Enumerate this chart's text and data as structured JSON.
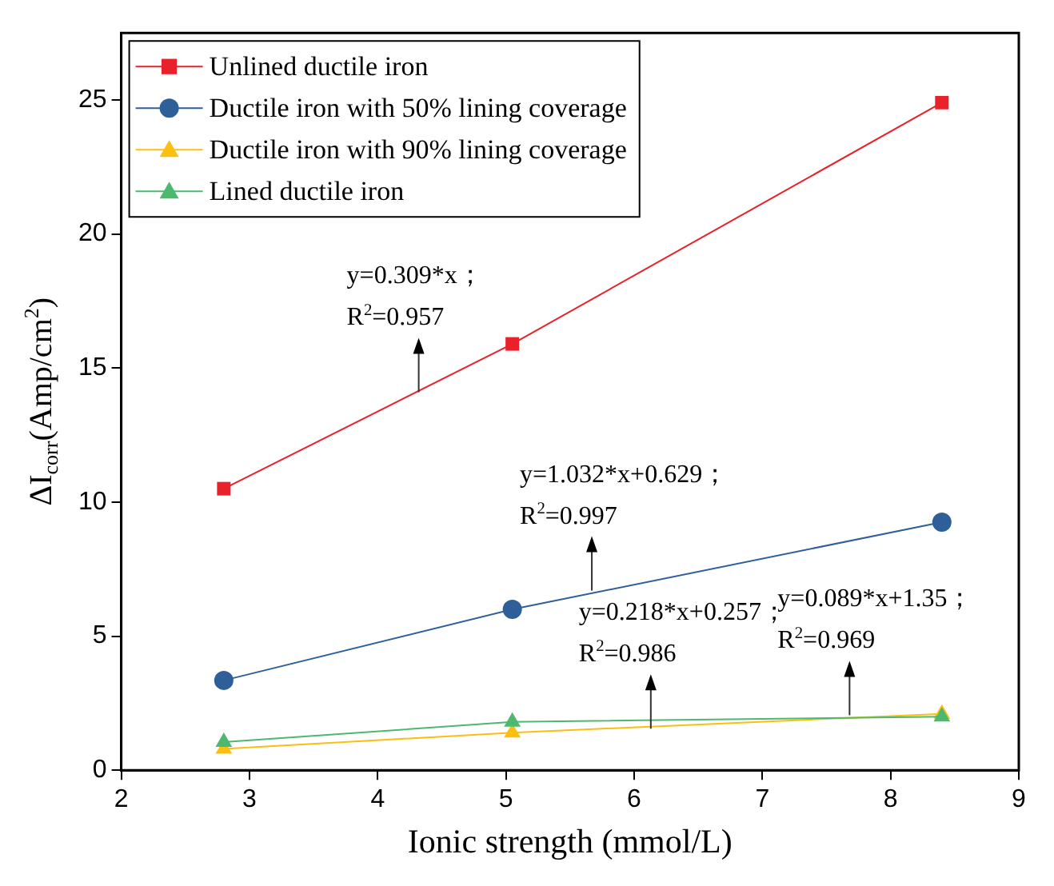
{
  "chart_data": {
    "type": "line",
    "xlabel": "Ionic strength (mmol/L)",
    "ylabel": "ΔI$_{corr}$(Amp/cm$^{2}$)",
    "x": [
      2.8,
      5.05,
      8.4
    ],
    "series": [
      {
        "name": "Unlined ductile iron",
        "color": "#e8212b",
        "values": [
          10.5,
          15.9,
          24.9
        ],
        "marker": "square"
      },
      {
        "name": "Ductile iron with 50% lining coverage",
        "color": "#2f5f98",
        "values": [
          3.35,
          6.0,
          9.25
        ],
        "marker": "circle"
      },
      {
        "name": "Ductile iron with 90% lining coverage",
        "color": "#fbbf10",
        "values": [
          0.8,
          1.4,
          2.1
        ],
        "marker": "triangle"
      },
      {
        "name": "Lined ductile iron",
        "color": "#4db870",
        "values": [
          1.05,
          1.8,
          2.0
        ],
        "marker": "triangle"
      }
    ],
    "xlim": [
      2,
      9
    ],
    "xticks": [
      2,
      3,
      4,
      5,
      6,
      7,
      8,
      9
    ],
    "ylim": [
      0,
      27.5
    ],
    "yticks": [
      0,
      5,
      10,
      15,
      20,
      25
    ],
    "grid": false,
    "legend": "top left",
    "annotations": [
      {
        "text": "y=0.309*x；\nR$^{2}$=0.957",
        "x": 4.32,
        "y": 14.1
      },
      {
        "text": "y=1.032*x+0.629；\nR$^{2}$=0.997",
        "x": 5.67,
        "y": 6.7
      },
      {
        "text": "y=0.218*x+0.257；\nR$^{2}$=0.986",
        "x": 6.13,
        "y": 1.55
      },
      {
        "text": "y=0.089*x+1.35；\nR$^{2}$=0.969",
        "x": 7.68,
        "y": 2.05
      }
    ]
  }
}
